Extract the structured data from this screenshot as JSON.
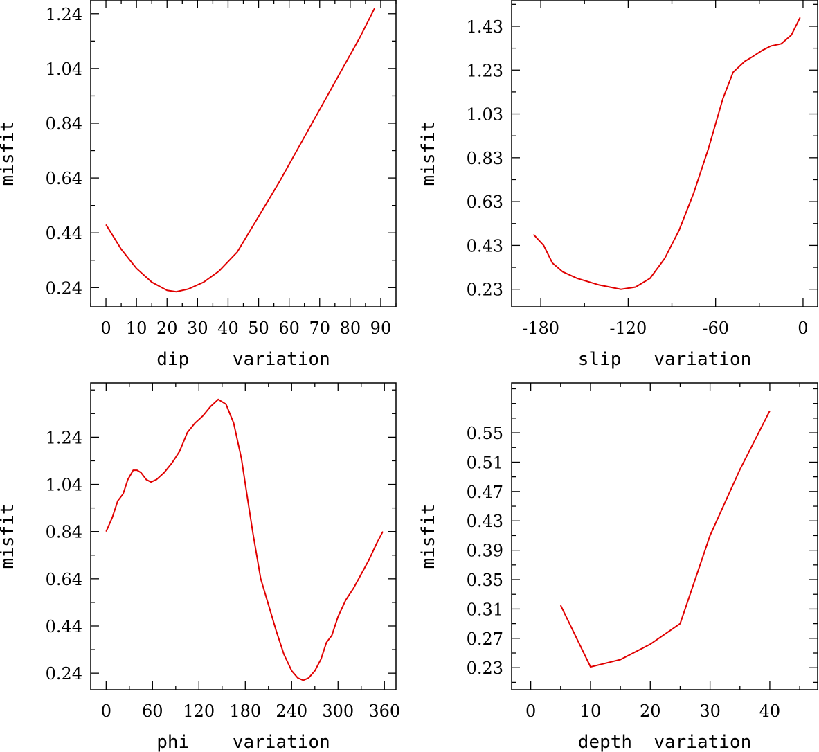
{
  "chart_data": [
    {
      "id": "dip",
      "type": "line",
      "xlabel": "dip    variation",
      "ylabel": "misfit",
      "xlim": [
        -5,
        95
      ],
      "ylim": [
        0.17,
        1.29
      ],
      "xticks": [
        0,
        10,
        20,
        30,
        40,
        50,
        60,
        70,
        80,
        90
      ],
      "xtick_labels": [
        "0",
        "10",
        "20",
        "30",
        "40",
        "50",
        "60",
        "70",
        "80",
        "90"
      ],
      "yticks": [
        0.24,
        0.44,
        0.64,
        0.84,
        1.04,
        1.24
      ],
      "ytick_labels": [
        "0.24",
        "0.44",
        "0.64",
        "0.84",
        "1.04",
        "1.24"
      ],
      "color": "#e00000",
      "x": [
        0,
        5,
        10,
        15,
        20,
        23,
        27,
        32,
        37,
        43,
        50,
        57,
        64,
        71,
        78,
        83,
        88
      ],
      "y": [
        0.47,
        0.38,
        0.31,
        0.26,
        0.23,
        0.225,
        0.235,
        0.26,
        0.3,
        0.37,
        0.5,
        0.63,
        0.77,
        0.91,
        1.05,
        1.15,
        1.26
      ]
    },
    {
      "id": "slip",
      "type": "line",
      "xlabel": "slip   variation",
      "ylabel": "misfit",
      "xlim": [
        -200,
        10
      ],
      "ylim": [
        0.15,
        1.55
      ],
      "xticks": [
        -180,
        -120,
        -60,
        0
      ],
      "xtick_labels": [
        "-180",
        "-120",
        "-60",
        "0"
      ],
      "yticks": [
        0.23,
        0.43,
        0.63,
        0.83,
        1.03,
        1.23,
        1.43
      ],
      "ytick_labels": [
        "0.23",
        "0.43",
        "0.63",
        "0.83",
        "1.03",
        "1.23",
        "1.43"
      ],
      "color": "#e00000",
      "x": [
        -185,
        -178,
        -172,
        -165,
        -155,
        -140,
        -125,
        -115,
        -105,
        -95,
        -85,
        -75,
        -65,
        -55,
        -48,
        -40,
        -35,
        -28,
        -22,
        -15,
        -8,
        -2
      ],
      "y": [
        0.48,
        0.43,
        0.35,
        0.31,
        0.28,
        0.25,
        0.23,
        0.24,
        0.28,
        0.37,
        0.5,
        0.67,
        0.87,
        1.1,
        1.22,
        1.27,
        1.29,
        1.32,
        1.34,
        1.35,
        1.39,
        1.47
      ]
    },
    {
      "id": "phi",
      "type": "line",
      "xlabel": "phi    variation",
      "ylabel": "misfit",
      "xlim": [
        -20,
        375
      ],
      "ylim": [
        0.17,
        1.47
      ],
      "xticks": [
        0,
        60,
        120,
        180,
        240,
        300,
        360
      ],
      "xtick_labels": [
        "0",
        "60",
        "120",
        "180",
        "240",
        "300",
        "360"
      ],
      "yticks": [
        0.24,
        0.44,
        0.64,
        0.84,
        1.04,
        1.24
      ],
      "ytick_labels": [
        "0.24",
        "0.44",
        "0.64",
        "0.84",
        "1.04",
        "1.24"
      ],
      "color": "#e00000",
      "x": [
        0,
        8,
        15,
        22,
        28,
        35,
        40,
        45,
        52,
        58,
        65,
        75,
        85,
        95,
        105,
        115,
        125,
        135,
        145,
        155,
        165,
        175,
        182,
        190,
        200,
        210,
        220,
        230,
        240,
        248,
        255,
        262,
        270,
        278,
        285,
        292,
        300,
        310,
        320,
        330,
        340,
        350,
        358
      ],
      "y": [
        0.84,
        0.9,
        0.97,
        1.0,
        1.06,
        1.1,
        1.1,
        1.09,
        1.06,
        1.05,
        1.06,
        1.09,
        1.13,
        1.18,
        1.26,
        1.3,
        1.33,
        1.37,
        1.4,
        1.38,
        1.3,
        1.15,
        1.0,
        0.83,
        0.64,
        0.53,
        0.42,
        0.32,
        0.25,
        0.22,
        0.21,
        0.22,
        0.25,
        0.3,
        0.37,
        0.4,
        0.48,
        0.55,
        0.6,
        0.66,
        0.72,
        0.79,
        0.84
      ]
    },
    {
      "id": "depth",
      "type": "line",
      "xlabel": "depth  variation",
      "ylabel": "misfit",
      "xlim": [
        -3.2,
        48
      ],
      "ylim": [
        0.2,
        0.618
      ],
      "xticks": [
        0,
        10,
        20,
        30,
        40
      ],
      "xtick_labels": [
        "0",
        "10",
        "20",
        "30",
        "40"
      ],
      "yticks": [
        0.23,
        0.27,
        0.31,
        0.35,
        0.39,
        0.43,
        0.47,
        0.51,
        0.55
      ],
      "ytick_labels": [
        "0.23",
        "0.27",
        "0.31",
        "0.35",
        "0.39",
        "0.43",
        "0.47",
        "0.51",
        "0.55"
      ],
      "color": "#e00000",
      "x": [
        5,
        10,
        15,
        20,
        25,
        30,
        35,
        40
      ],
      "y": [
        0.315,
        0.231,
        0.241,
        0.262,
        0.29,
        0.41,
        0.5,
        0.58
      ]
    }
  ]
}
